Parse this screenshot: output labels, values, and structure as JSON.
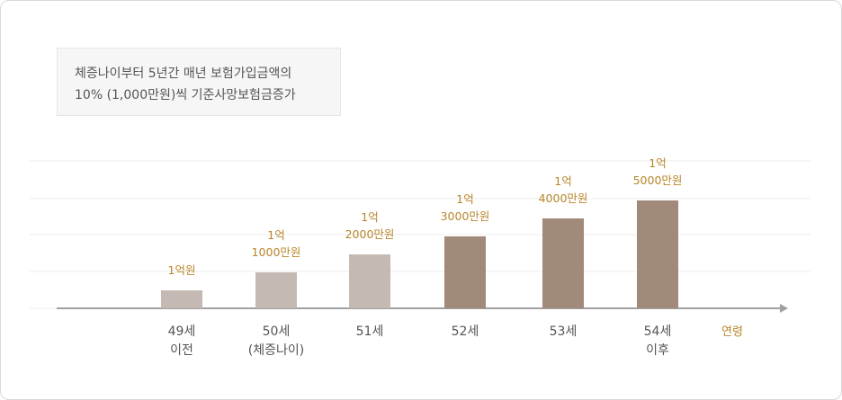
{
  "note": {
    "line1": "체증나이부터 5년간 매년 보험가입금액의",
    "line2": "10% (1,000만원)씩 기준사망보험금증가"
  },
  "chart_data": {
    "type": "bar",
    "xlabel": "연령",
    "categories": [
      [
        "49세",
        "이전"
      ],
      [
        "50세",
        "(체증나이)"
      ],
      [
        "51세"
      ],
      [
        "52세"
      ],
      [
        "53세"
      ],
      [
        "54세",
        "이후"
      ]
    ],
    "values": [
      10000,
      11000,
      12000,
      13000,
      14000,
      15000
    ],
    "unit": "만원",
    "data_labels": [
      [
        "1억원"
      ],
      [
        "1억",
        "1000만원"
      ],
      [
        "1억",
        "2000만원"
      ],
      [
        "1억",
        "3000만원"
      ],
      [
        "1억",
        "4000만원"
      ],
      [
        "1억",
        "5000만원"
      ]
    ],
    "bar_colors": [
      "#c4b9b3",
      "#c4b9b3",
      "#c4b9b3",
      "#a28a7b",
      "#a28a7b",
      "#a28a7b"
    ],
    "label_color": "#b8862a",
    "axis_color": "#a0a0a0",
    "grid": true
  }
}
